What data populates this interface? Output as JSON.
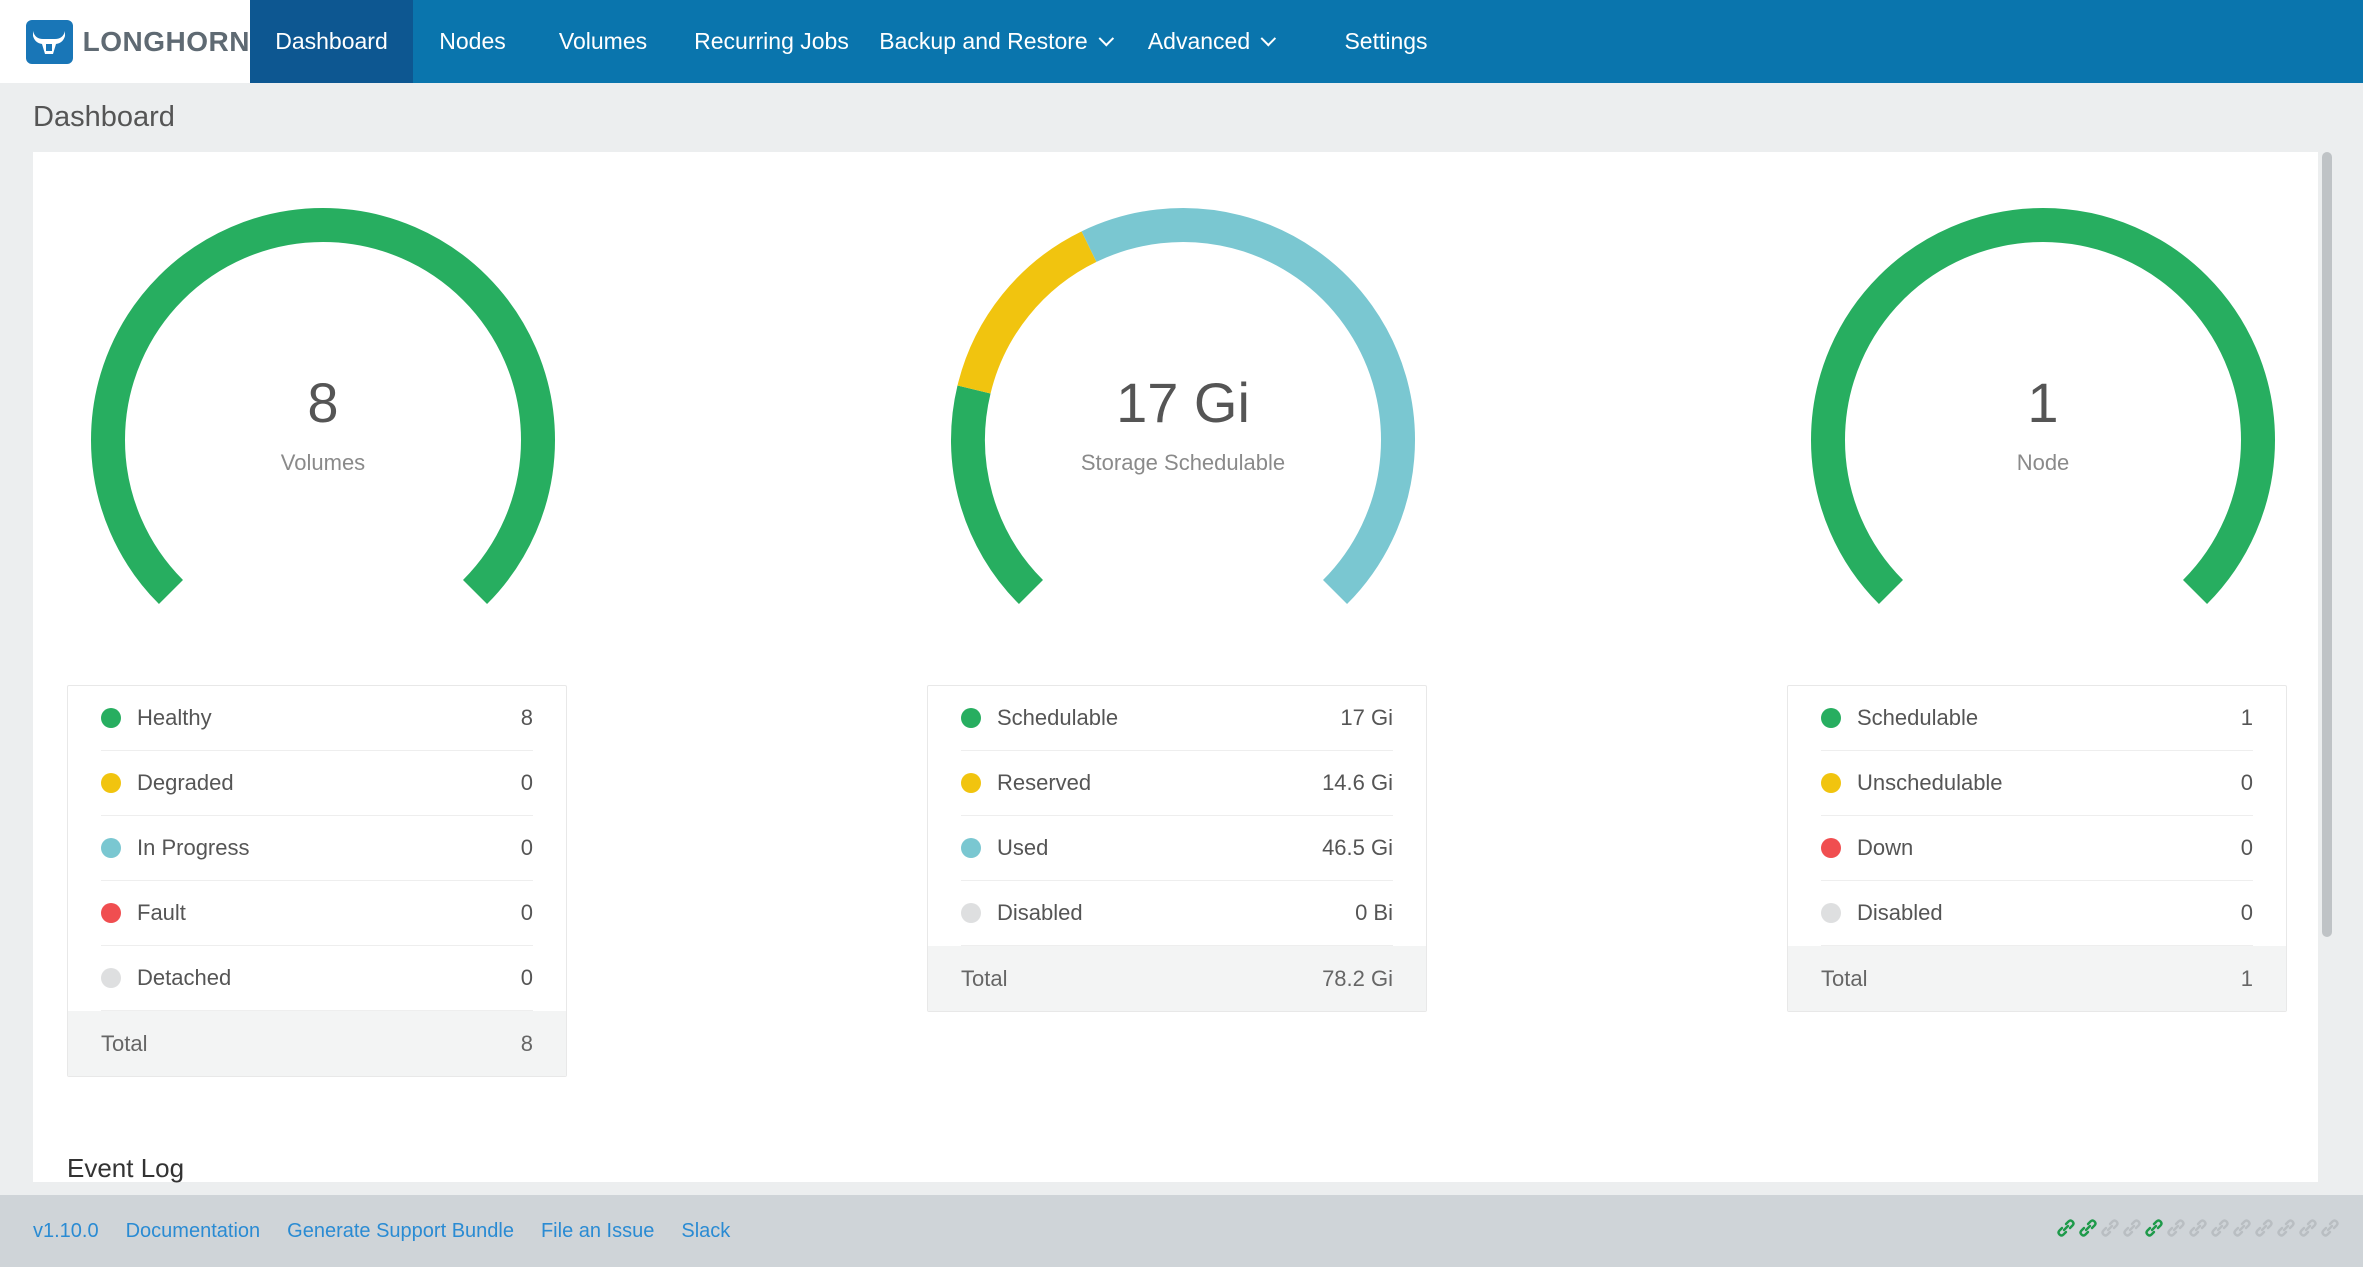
{
  "app": {
    "logo_text": "LONGHORN"
  },
  "nav": {
    "items": [
      {
        "label": "Dashboard",
        "active": true
      },
      {
        "label": "Nodes",
        "active": false
      },
      {
        "label": "Volumes",
        "active": false
      },
      {
        "label": "Recurring Jobs",
        "active": false
      },
      {
        "label": "Backup and Restore",
        "active": false,
        "dropdown": true
      },
      {
        "label": "Advanced",
        "active": false,
        "dropdown": true
      },
      {
        "label": "Settings",
        "active": false
      }
    ]
  },
  "page": {
    "title": "Dashboard"
  },
  "colors": {
    "green": "#27ae60",
    "yellow": "#f1c40f",
    "blue": "#7ac7d1",
    "red": "#f04e50",
    "grey": "#dedfe0",
    "nav": "#0a75ad",
    "nav_active": "#0d5791"
  },
  "gauges": [
    {
      "value": "8",
      "label": "Volumes",
      "segments": [
        {
          "color": "green",
          "fraction": 1.0
        }
      ],
      "legend": [
        {
          "name": "Healthy",
          "count": "8",
          "color": "green"
        },
        {
          "name": "Degraded",
          "count": "0",
          "color": "yellow"
        },
        {
          "name": "In Progress",
          "count": "0",
          "color": "blue"
        },
        {
          "name": "Fault",
          "count": "0",
          "color": "red"
        },
        {
          "name": "Detached",
          "count": "0",
          "color": "grey"
        }
      ],
      "total": {
        "name": "Total",
        "count": "8"
      }
    },
    {
      "value": "17 Gi",
      "label": "Storage Schedulable",
      "segments": [
        {
          "color": "green",
          "fraction": 0.217
        },
        {
          "color": "yellow",
          "fraction": 0.187
        },
        {
          "color": "blue",
          "fraction": 0.596
        }
      ],
      "legend": [
        {
          "name": "Schedulable",
          "count": "17 Gi",
          "color": "green"
        },
        {
          "name": "Reserved",
          "count": "14.6 Gi",
          "color": "yellow"
        },
        {
          "name": "Used",
          "count": "46.5 Gi",
          "color": "blue"
        },
        {
          "name": "Disabled",
          "count": "0 Bi",
          "color": "grey"
        }
      ],
      "total": {
        "name": "Total",
        "count": "78.2 Gi"
      }
    },
    {
      "value": "1",
      "label": "Node",
      "segments": [
        {
          "color": "green",
          "fraction": 1.0
        }
      ],
      "legend": [
        {
          "name": "Schedulable",
          "count": "1",
          "color": "green"
        },
        {
          "name": "Unschedulable",
          "count": "0",
          "color": "yellow"
        },
        {
          "name": "Down",
          "count": "0",
          "color": "red"
        },
        {
          "name": "Disabled",
          "count": "0",
          "color": "grey"
        }
      ],
      "total": {
        "name": "Total",
        "count": "1"
      }
    }
  ],
  "event_log": {
    "title": "Event Log"
  },
  "footer": {
    "links": [
      "v1.10.0",
      "Documentation",
      "Generate Support Bundle",
      "File an Issue",
      "Slack"
    ],
    "connection_icons": [
      "active",
      "active",
      "idle",
      "idle",
      "active",
      "idle",
      "idle",
      "idle",
      "idle",
      "idle",
      "idle",
      "idle",
      "idle"
    ]
  }
}
